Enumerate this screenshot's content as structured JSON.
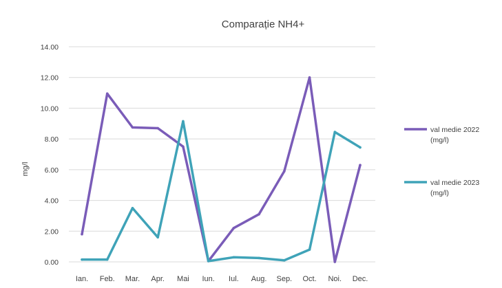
{
  "chart_data": {
    "type": "line",
    "title": "Comparație NH4+",
    "xlabel": "",
    "ylabel": "mg/l",
    "ylim": [
      0,
      14
    ],
    "y_ticks": [
      "0.00",
      "2.00",
      "4.00",
      "6.00",
      "8.00",
      "10.00",
      "12.00",
      "14.00"
    ],
    "grid": true,
    "legend_position": "right",
    "categories": [
      "Ian.",
      "Feb.",
      "Mar.",
      "Apr.",
      "Mai",
      "Iun.",
      "Iul.",
      "Aug.",
      "Sep.",
      "Oct.",
      "Noi.",
      "Dec."
    ],
    "series": [
      {
        "name": "val medie 2022 (mg/l)",
        "legend_lines": [
          "val medie 2022",
          "(mg/l)"
        ],
        "color": "#7a5cb8",
        "values": [
          1.8,
          10.95,
          8.75,
          8.7,
          7.5,
          0.05,
          2.2,
          3.1,
          5.9,
          12.0,
          0.0,
          6.3
        ]
      },
      {
        "name": "val medie 2023 (mg/l)",
        "legend_lines": [
          "val medie 2023",
          "(mg/l)"
        ],
        "color": "#3fa3b8",
        "values": [
          0.15,
          0.15,
          3.5,
          1.6,
          9.15,
          0.05,
          0.3,
          0.25,
          0.1,
          0.8,
          8.45,
          7.45
        ]
      }
    ]
  }
}
